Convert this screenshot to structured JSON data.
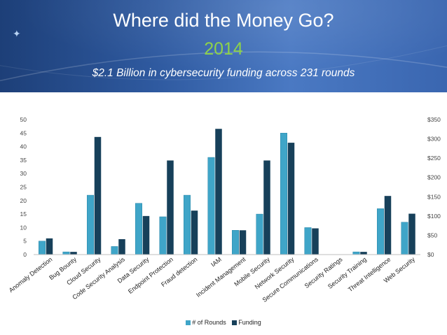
{
  "slide": {
    "title": "Where did the Money Go?",
    "year": "2014",
    "subtitle": "$2.1 Billion in cybersecurity funding across 231 rounds",
    "colors": {
      "banner": "#2f5aa0",
      "year": "#8ed24a"
    }
  },
  "chart_data": {
    "type": "bar",
    "categories": [
      "Anomaly Detection",
      "Bug Bounty",
      "Cloud Security",
      "Code Security Analysis",
      "Data Security",
      "Endpoint Protection",
      "Fraud detection",
      "IAM",
      "Incident Management",
      "Mobile Security",
      "Network Security",
      "Secure Communications",
      "Security Ratings",
      "Security Training",
      "Threat Intelligence",
      "Web Security"
    ],
    "series": [
      {
        "name": "# of Rounds",
        "axis": "left",
        "color": "#3fa5c8",
        "values": [
          5,
          1,
          22,
          3,
          19,
          14,
          22,
          36,
          9,
          15,
          45,
          10,
          0,
          1,
          17,
          12
        ]
      },
      {
        "name": "Funding",
        "axis": "right",
        "color": "#17405a",
        "values": [
          42,
          7,
          305,
          40,
          100,
          244,
          114,
          326,
          63,
          244,
          290,
          68,
          0,
          7,
          152,
          106
        ]
      }
    ],
    "y_left": {
      "min": 0,
      "max": 50,
      "step": 5,
      "ticks": [
        "0",
        "5",
        "10",
        "15",
        "20",
        "25",
        "30",
        "35",
        "40",
        "45",
        "50"
      ]
    },
    "y_right": {
      "min": 0,
      "max": 350,
      "step": 50,
      "ticks": [
        "$0",
        "$50",
        "$100",
        "$150",
        "$200",
        "$250",
        "$300",
        "$350"
      ]
    },
    "grid": false,
    "legend_position": "bottom"
  }
}
